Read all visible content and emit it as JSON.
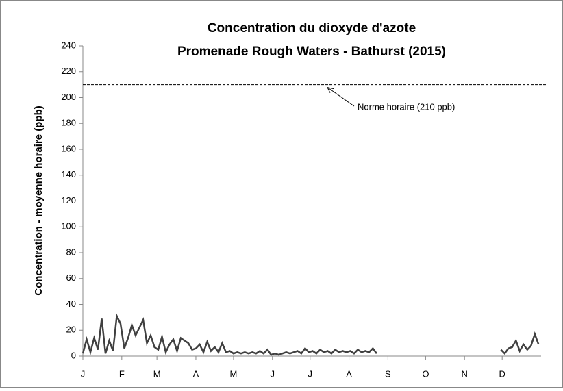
{
  "chart_data": {
    "type": "line",
    "title": "Concentration du dioxyde d'azote",
    "subtitle": "Promenade Rough Waters - Bathurst (2015)",
    "y_label": "Concentration - moyenne horaire (ppb)",
    "color": "#404040",
    "xlim": [
      0,
      365
    ],
    "xticks": [
      {
        "value": 0,
        "label": "J"
      },
      {
        "value": 31,
        "label": "F"
      },
      {
        "value": 59,
        "label": "M"
      },
      {
        "value": 90,
        "label": "A"
      },
      {
        "value": 120,
        "label": "M"
      },
      {
        "value": 151,
        "label": "J"
      },
      {
        "value": 181,
        "label": "J"
      },
      {
        "value": 212,
        "label": "A"
      },
      {
        "value": 243,
        "label": "S"
      },
      {
        "value": 273,
        "label": "O"
      },
      {
        "value": 304,
        "label": "N"
      },
      {
        "value": 334,
        "label": "D"
      }
    ],
    "ylim": [
      0,
      240
    ],
    "yticks": [
      0,
      20,
      40,
      60,
      80,
      100,
      120,
      140,
      160,
      180,
      200,
      220,
      240
    ],
    "reference_line": {
      "value": 210,
      "label": "Norme horaire (210 ppb)"
    },
    "x": [
      0,
      3,
      6,
      9,
      12,
      15,
      18,
      21,
      24,
      27,
      30,
      33,
      36,
      39,
      42,
      45,
      48,
      51,
      54,
      57,
      60,
      63,
      66,
      69,
      72,
      75,
      78,
      81,
      84,
      87,
      90,
      93,
      96,
      99,
      102,
      105,
      108,
      111,
      114,
      117,
      120,
      123,
      126,
      129,
      132,
      135,
      138,
      141,
      144,
      147,
      150,
      153,
      156,
      159,
      162,
      165,
      168,
      171,
      174,
      177,
      180,
      183,
      186,
      189,
      192,
      195,
      198,
      201,
      204,
      207,
      210,
      213,
      216,
      219,
      222,
      225,
      228,
      231,
      234,
      237,
      240,
      243,
      246,
      249,
      252,
      255,
      258,
      261,
      264,
      267,
      270,
      273,
      276,
      279,
      282,
      285,
      288,
      291,
      294,
      297,
      300,
      303,
      306,
      309,
      312,
      315,
      318,
      321,
      324,
      327,
      330,
      333,
      336,
      339,
      342,
      345,
      348,
      351,
      354,
      357,
      360,
      363
    ],
    "values": [
      2,
      13,
      3,
      14,
      5,
      29,
      2,
      12,
      4,
      31,
      25,
      6,
      14,
      24,
      16,
      22,
      28,
      10,
      16,
      7,
      5,
      15,
      3,
      9,
      13,
      4,
      14,
      12,
      10,
      5,
      6,
      9,
      3,
      11,
      4,
      7,
      3,
      10,
      3,
      4,
      2,
      3,
      2,
      3,
      2,
      3,
      2,
      4,
      2,
      5,
      1,
      2,
      1,
      2,
      3,
      2,
      3,
      4,
      2,
      6,
      3,
      4,
      2,
      5,
      3,
      4,
      2,
      5,
      3,
      4,
      3,
      4,
      2,
      5,
      3,
      4,
      3,
      6,
      2,
      null,
      null,
      null,
      null,
      null,
      null,
      null,
      null,
      null,
      null,
      null,
      null,
      null,
      null,
      null,
      null,
      null,
      null,
      null,
      null,
      null,
      null,
      null,
      null,
      null,
      null,
      null,
      null,
      null,
      null,
      null,
      null,
      5,
      2,
      6,
      7,
      12,
      4,
      9,
      5,
      8,
      17,
      9
    ]
  }
}
